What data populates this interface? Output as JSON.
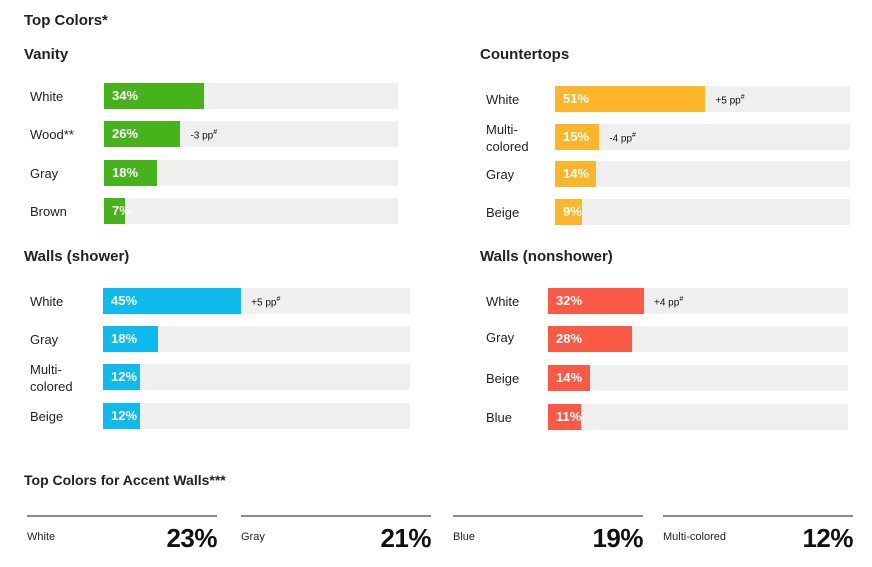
{
  "title": "Top Colors*",
  "chart_data": [
    {
      "type": "bar",
      "orientation": "horizontal",
      "title": "Vanity",
      "color": "#46b31c",
      "xlim": [
        0,
        100
      ],
      "categories": [
        "White",
        "Wood**",
        "Gray",
        "Brown"
      ],
      "values": [
        34,
        26,
        18,
        7
      ],
      "value_labels": [
        "34%",
        "26%",
        "18%",
        "7%"
      ],
      "annotations": [
        "",
        "-3 pp",
        "",
        ""
      ]
    },
    {
      "type": "bar",
      "orientation": "horizontal",
      "title": "Countertops",
      "color": "#fdb62a",
      "xlim": [
        0,
        100
      ],
      "categories": [
        "White",
        "Multi-colored",
        "Gray",
        "Beige"
      ],
      "values": [
        51,
        15,
        14,
        9
      ],
      "value_labels": [
        "51%",
        "15%",
        "14%",
        "9%"
      ],
      "annotations": [
        "+5 pp",
        "-4 pp",
        "",
        ""
      ]
    },
    {
      "type": "bar",
      "orientation": "horizontal",
      "title": "Walls (shower)",
      "color": "#0ebbec",
      "xlim": [
        0,
        100
      ],
      "categories": [
        "White",
        "Gray",
        "Multi-colored",
        "Beige"
      ],
      "values": [
        45,
        18,
        12,
        12
      ],
      "value_labels": [
        "45%",
        "18%",
        "12%",
        "12%"
      ],
      "annotations": [
        "+5 pp",
        "",
        "",
        ""
      ]
    },
    {
      "type": "bar",
      "orientation": "horizontal",
      "title": "Walls (nonshower)",
      "color": "#fa5a45",
      "xlim": [
        0,
        100
      ],
      "categories": [
        "White",
        "Gray",
        "Beige",
        "Blue"
      ],
      "values": [
        32,
        28,
        14,
        11
      ],
      "value_labels": [
        "32%",
        "28%",
        "14%",
        "11%"
      ],
      "annotations": [
        "+4 pp",
        "",
        "",
        ""
      ]
    },
    {
      "type": "table",
      "title": "Top Colors for Accent Walls***",
      "categories": [
        "White",
        "Gray",
        "Blue",
        "Multi-colored"
      ],
      "values": [
        23,
        21,
        19,
        12
      ],
      "value_labels": [
        "23%",
        "21%",
        "19%",
        "12%"
      ]
    }
  ],
  "label_display": {
    "Multi-colored": [
      "Multi-",
      "colored"
    ]
  },
  "footnote_mark": "#"
}
